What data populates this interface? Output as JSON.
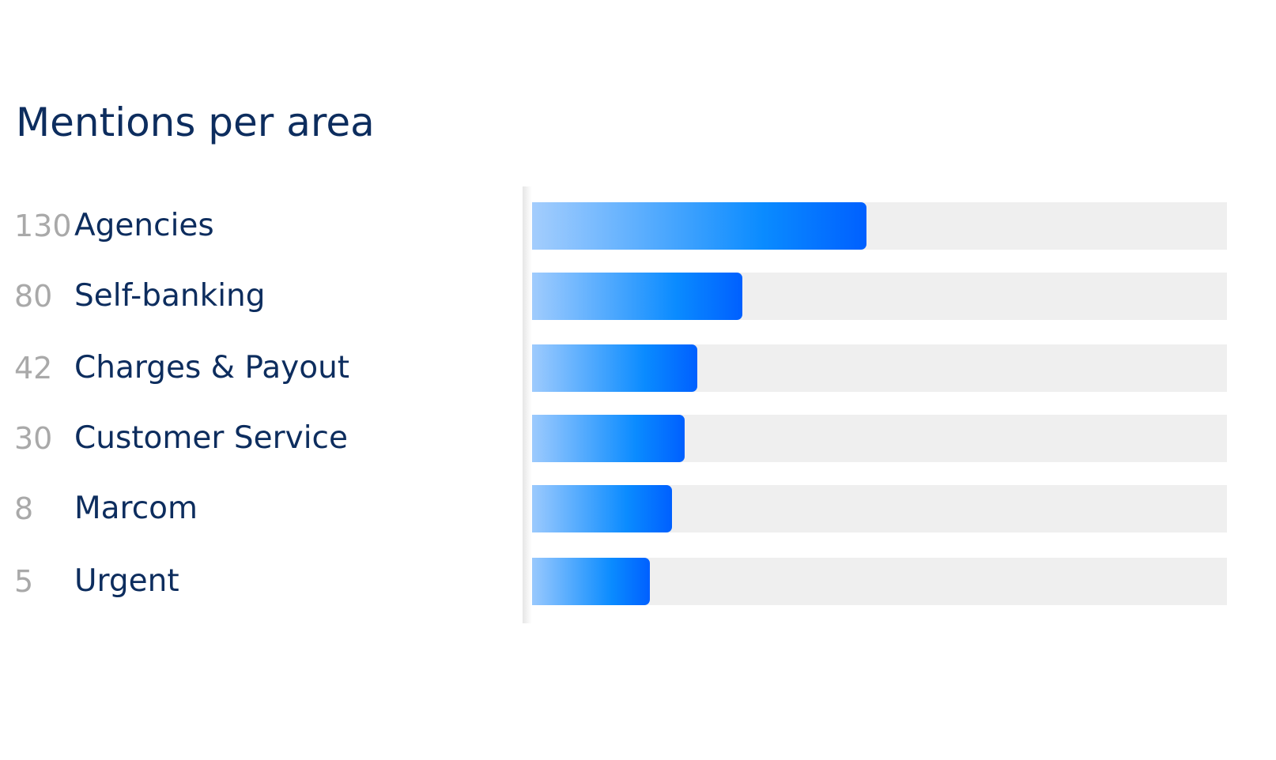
{
  "chart_data": {
    "type": "bar",
    "orientation": "horizontal",
    "title": "Mentions per area",
    "categories": [
      "Agencies",
      "Self-banking",
      "Charges & Payout",
      "Customer Service",
      "Marcom",
      "Urgent"
    ],
    "values": [
      130,
      80,
      42,
      30,
      8,
      5
    ],
    "count_labels": [
      "130",
      "80",
      "42",
      "30",
      "8",
      "5"
    ],
    "bar_fill_fraction": [
      0.488,
      0.312,
      0.248,
      0.23,
      0.212,
      0.181
    ],
    "xlim": [
      0,
      266
    ],
    "grid": false,
    "legend": "none"
  },
  "colors": {
    "title": "#0d2d5e",
    "label": "#0d2d5e",
    "count": "#a9a9a9",
    "track": "#efefef",
    "bar_gradient_start": "#aad0fd",
    "bar_gradient_mid": "#0a8bff",
    "bar_gradient_end": "#0060ff"
  }
}
